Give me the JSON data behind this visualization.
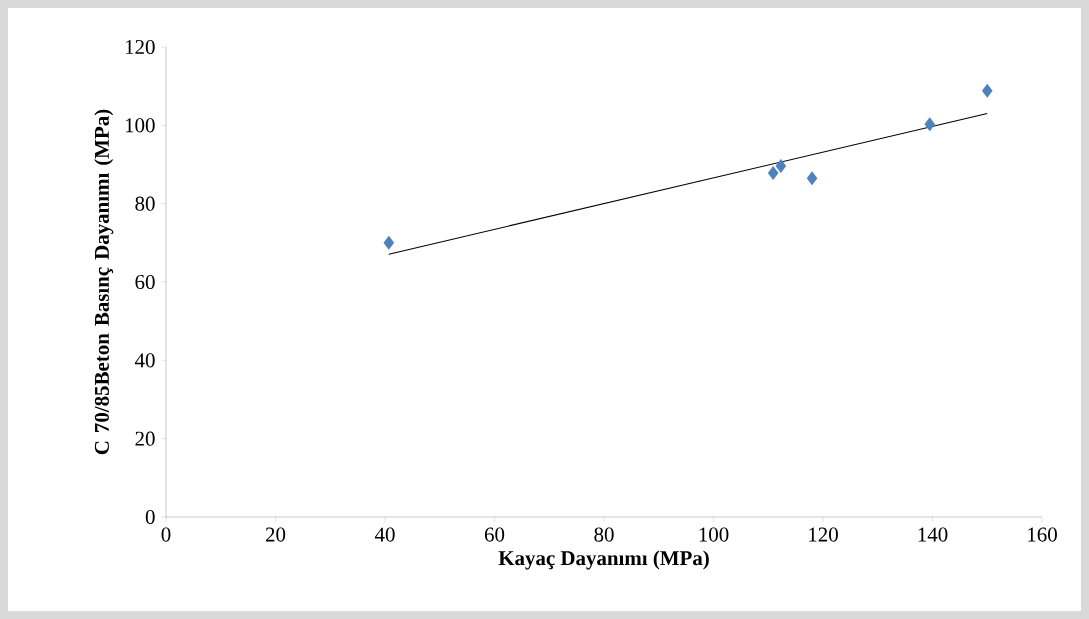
{
  "chart_data": {
    "type": "scatter",
    "xlabel": "Kayaç Dayanımı (MPa)",
    "ylabel": "C 70/85Beton Basınç Dayanımı (MPa)",
    "xlim": [
      0,
      160
    ],
    "ylim": [
      0,
      120
    ],
    "xticks": [
      0,
      20,
      40,
      60,
      80,
      100,
      120,
      140,
      160
    ],
    "yticks": [
      0,
      20,
      40,
      60,
      80,
      100,
      120
    ],
    "marker": "diamond",
    "series": [
      {
        "color": "#4f81bd",
        "x": [
          40.7,
          110.9,
          112.3,
          118.0,
          139.5,
          150.0
        ],
        "values": [
          70.0,
          87.8,
          89.6,
          86.5,
          100.3,
          108.8
        ]
      },
      {
        "type": "line",
        "marker": "none",
        "color": "#000000",
        "x": [
          40.7,
          150.0
        ],
        "values": [
          67.1,
          103.0
        ]
      }
    ]
  }
}
